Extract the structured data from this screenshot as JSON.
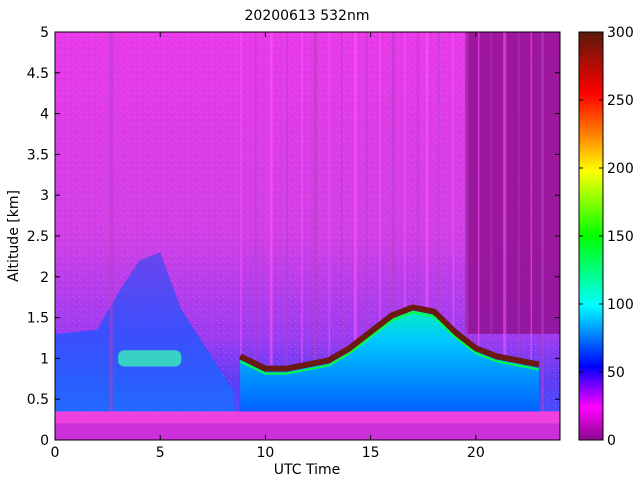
{
  "chart_data": {
    "type": "heatmap",
    "title": "20200613 532nm",
    "xlabel": "UTC Time",
    "ylabel": "Altitude [km]",
    "xlim": [
      0,
      24
    ],
    "ylim": [
      0,
      5
    ],
    "x_ticks": [
      "0",
      "5",
      "10",
      "15",
      "20"
    ],
    "y_ticks": [
      "0",
      "0.5",
      "1",
      "1.5",
      "2",
      "2.5",
      "3",
      "3.5",
      "4",
      "4.5",
      "5"
    ],
    "colorbar": {
      "range": [
        0,
        300
      ],
      "ticks": [
        "0",
        "50",
        "100",
        "150",
        "200",
        "250",
        "300"
      ],
      "colors": [
        "#8b0a8e",
        "#ff00ff",
        "#0000ff",
        "#00ffff",
        "#00ff00",
        "#ffff00",
        "#ff8000",
        "#ff0000",
        "#5a1a0a"
      ]
    },
    "layers": {
      "surface_band": {
        "altitude_range_km": [
          0.2,
          0.35
        ],
        "value": 30
      },
      "boundary_layer": {
        "x_range": [
          0,
          8.5
        ],
        "top_km": 1.3,
        "value": 45
      },
      "aerosol_patch": {
        "x_range": [
          3,
          6
        ],
        "altitude_range_km": [
          0.9,
          1.1
        ],
        "value": 110
      },
      "cloud_base": [
        {
          "x": 8.8,
          "alt": 1.0
        },
        {
          "x": 10,
          "alt": 0.85
        },
        {
          "x": 11,
          "alt": 0.85
        },
        {
          "x": 12,
          "alt": 0.9
        },
        {
          "x": 13,
          "alt": 0.95
        },
        {
          "x": 14,
          "alt": 1.1
        },
        {
          "x": 15,
          "alt": 1.3
        },
        {
          "x": 16,
          "alt": 1.5
        },
        {
          "x": 17,
          "alt": 1.6
        },
        {
          "x": 18,
          "alt": 1.55
        },
        {
          "x": 19,
          "alt": 1.3
        },
        {
          "x": 20,
          "alt": 1.1
        },
        {
          "x": 21,
          "alt": 1.0
        },
        {
          "x": 22,
          "alt": 0.95
        },
        {
          "x": 23,
          "alt": 0.9
        }
      ],
      "rain_streaks_x": [
        2.6,
        8.8,
        9.5,
        10.2,
        11.0,
        11.7,
        12.3,
        13.0,
        13.6,
        14.2,
        14.8,
        15.4,
        16.0,
        16.6,
        17.2,
        17.6,
        18.2,
        18.9,
        19.5,
        20.1,
        20.7,
        21.3,
        22.0,
        22.6,
        23.1
      ]
    }
  }
}
